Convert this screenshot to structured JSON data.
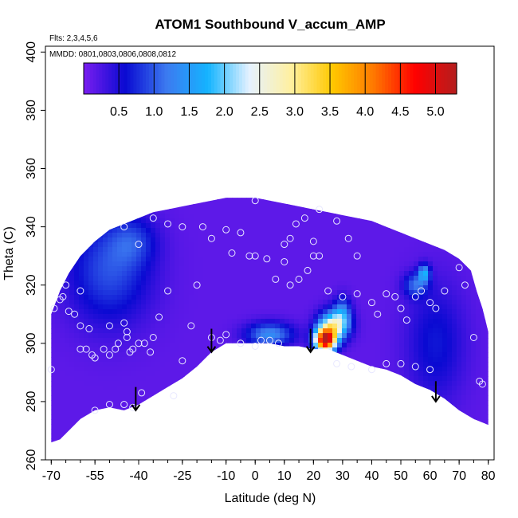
{
  "chart_data": {
    "type": "heatmap",
    "title": "ATOM1 Southbound V_accum_AMP",
    "subtitle_flights": "Flts: 2,3,4,5,6",
    "subtitle_dates": "MMDD: 0801,0803,0806,0808,0812",
    "xlabel": "Latitude (deg N)",
    "ylabel": "Theta (C)",
    "xlim": [
      -72,
      82
    ],
    "ylim": [
      260,
      402
    ],
    "x_ticks": [
      -70,
      -55,
      -40,
      -25,
      -10,
      0,
      10,
      20,
      30,
      40,
      50,
      60,
      70,
      80
    ],
    "y_ticks": [
      260,
      280,
      300,
      320,
      340,
      360,
      380,
      400
    ],
    "colorbar": {
      "range": [
        0,
        5.3
      ],
      "tick_values": [
        0.5,
        1.0,
        1.5,
        2.0,
        2.5,
        3.0,
        3.5,
        4.0,
        4.5,
        5.0
      ],
      "tick_labels": [
        "0.5",
        "1.0",
        "1.5",
        "2.0",
        "2.5",
        "3.0",
        "3.5",
        "4.0",
        "4.5",
        "5.0"
      ],
      "colors": [
        "#7a1ef0",
        "#0a0ad2",
        "#3c7af0",
        "#14b4ff",
        "#e6f2ff",
        "#fff0a0",
        "#ffc800",
        "#ff7800",
        "#ff0000",
        "#b41e1e"
      ]
    },
    "domain_top": [
      [
        -70,
        310
      ],
      [
        -67,
        318
      ],
      [
        -64,
        324
      ],
      [
        -60,
        330
      ],
      [
        -55,
        335
      ],
      [
        -50,
        339
      ],
      [
        -45,
        341
      ],
      [
        -40,
        343
      ],
      [
        -35,
        345
      ],
      [
        -30,
        346
      ],
      [
        -25,
        347
      ],
      [
        -20,
        348
      ],
      [
        -15,
        349
      ],
      [
        -10,
        350
      ],
      [
        -5,
        350
      ],
      [
        0,
        350
      ],
      [
        5,
        349
      ],
      [
        10,
        348
      ],
      [
        15,
        347
      ],
      [
        20,
        346
      ],
      [
        25,
        345
      ],
      [
        30,
        344
      ],
      [
        35,
        343
      ],
      [
        40,
        342
      ],
      [
        45,
        340
      ],
      [
        50,
        338
      ],
      [
        55,
        336
      ],
      [
        60,
        334
      ],
      [
        65,
        332
      ],
      [
        70,
        329
      ],
      [
        74,
        325
      ],
      [
        76,
        318
      ],
      [
        78,
        312
      ],
      [
        80,
        304
      ]
    ],
    "domain_bottom": [
      [
        80,
        272
      ],
      [
        75,
        274
      ],
      [
        70,
        277
      ],
      [
        65,
        281
      ],
      [
        60,
        284
      ],
      [
        55,
        286
      ],
      [
        50,
        289
      ],
      [
        45,
        291
      ],
      [
        40,
        292
      ],
      [
        35,
        294
      ],
      [
        30,
        296
      ],
      [
        25,
        298
      ],
      [
        20,
        298
      ],
      [
        15,
        299
      ],
      [
        10,
        299
      ],
      [
        5,
        300
      ],
      [
        0,
        300
      ],
      [
        -5,
        300
      ],
      [
        -10,
        300
      ],
      [
        -15,
        297
      ],
      [
        -20,
        292
      ],
      [
        -25,
        288
      ],
      [
        -30,
        285
      ],
      [
        -35,
        282
      ],
      [
        -40,
        279
      ],
      [
        -45,
        277
      ],
      [
        -50,
        278
      ],
      [
        -55,
        277
      ],
      [
        -60,
        274
      ],
      [
        -64,
        270
      ],
      [
        -67,
        267
      ],
      [
        -70,
        266
      ]
    ],
    "field_features": [
      {
        "x": 24,
        "y": 301,
        "amp": 4.9,
        "sx": 3.5,
        "sy": 4
      },
      {
        "x": 27,
        "y": 306,
        "amp": 2.4,
        "sx": 5,
        "sy": 5
      },
      {
        "x": 30,
        "y": 311,
        "amp": 0.9,
        "sx": 3,
        "sy": 5
      },
      {
        "x": 5,
        "y": 303,
        "amp": 1.2,
        "sx": 8,
        "sy": 4
      },
      {
        "x": -50,
        "y": 325,
        "amp": 0.8,
        "sx": 14,
        "sy": 18
      },
      {
        "x": -42,
        "y": 335,
        "amp": 0.5,
        "sx": 8,
        "sy": 8
      },
      {
        "x": 55,
        "y": 320,
        "amp": 0.9,
        "sx": 4,
        "sy": 4
      },
      {
        "x": 62,
        "y": 300,
        "amp": 0.5,
        "sx": 10,
        "sy": 20
      },
      {
        "x": 58,
        "y": 324,
        "amp": 1.4,
        "sx": 2,
        "sy": 3
      }
    ],
    "field_base": 0.15,
    "observation_points": [
      [
        -70,
        291
      ],
      [
        -69,
        312
      ],
      [
        -67,
        315
      ],
      [
        -66,
        316
      ],
      [
        -64,
        311
      ],
      [
        -62,
        310
      ],
      [
        -60,
        306
      ],
      [
        -58,
        298
      ],
      [
        -57,
        305
      ],
      [
        -55,
        295
      ],
      [
        -52,
        298
      ],
      [
        -50,
        296
      ],
      [
        -50,
        306
      ],
      [
        -48,
        298
      ],
      [
        -47,
        300
      ],
      [
        -45,
        307
      ],
      [
        -44,
        304
      ],
      [
        -44,
        302
      ],
      [
        -43,
        297
      ],
      [
        -42,
        298
      ],
      [
        -38,
        300
      ],
      [
        -36,
        297
      ],
      [
        -33,
        309
      ],
      [
        -30,
        318
      ],
      [
        -28,
        282
      ],
      [
        -25,
        294
      ],
      [
        -22,
        306
      ],
      [
        -20,
        320
      ],
      [
        -15,
        302
      ],
      [
        -12,
        301
      ],
      [
        -10,
        303
      ],
      [
        -5,
        300
      ],
      [
        0,
        299
      ],
      [
        2,
        301
      ],
      [
        5,
        301
      ],
      [
        8,
        300
      ],
      [
        -35,
        343
      ],
      [
        -30,
        341
      ],
      [
        -25,
        340
      ],
      [
        -18,
        340
      ],
      [
        -10,
        339
      ],
      [
        -5,
        338
      ],
      [
        0,
        349
      ],
      [
        -15,
        336
      ],
      [
        -8,
        331
      ],
      [
        -2,
        330
      ],
      [
        0,
        330
      ],
      [
        4,
        329
      ],
      [
        7,
        322
      ],
      [
        10,
        328
      ],
      [
        12,
        320
      ],
      [
        15,
        322
      ],
      [
        18,
        325
      ],
      [
        20,
        335
      ],
      [
        22,
        330
      ],
      [
        25,
        318
      ],
      [
        30,
        316
      ],
      [
        35,
        317
      ],
      [
        40,
        314
      ],
      [
        42,
        310
      ],
      [
        45,
        317
      ],
      [
        48,
        316
      ],
      [
        50,
        312
      ],
      [
        52,
        308
      ],
      [
        55,
        316
      ],
      [
        57,
        318
      ],
      [
        60,
        314
      ],
      [
        62,
        312
      ],
      [
        65,
        318
      ],
      [
        70,
        326
      ],
      [
        72,
        320
      ],
      [
        75,
        302
      ],
      [
        77,
        287
      ],
      [
        78,
        286
      ],
      [
        -56,
        296
      ],
      [
        -60,
        298
      ],
      [
        -40,
        300
      ],
      [
        -35,
        302
      ],
      [
        -55,
        277
      ],
      [
        -50,
        279
      ],
      [
        -45,
        279
      ],
      [
        -42,
        278
      ],
      [
        -39,
        283
      ],
      [
        28,
        293
      ],
      [
        33,
        292
      ],
      [
        40,
        291
      ],
      [
        45,
        293
      ],
      [
        50,
        293
      ],
      [
        55,
        292
      ],
      [
        60,
        291
      ],
      [
        10,
        334
      ],
      [
        14,
        341
      ],
      [
        17,
        343
      ],
      [
        22,
        346
      ],
      [
        28,
        342
      ],
      [
        32,
        336
      ],
      [
        -45,
        340
      ],
      [
        -40,
        334
      ],
      [
        -60,
        318
      ],
      [
        -65,
        320
      ],
      [
        12,
        336
      ],
      [
        20,
        330
      ],
      [
        35,
        330
      ]
    ],
    "arrows": [
      {
        "x": -41,
        "y_top": 285,
        "y_tip": 277
      },
      {
        "x": -15,
        "y_top": 305,
        "y_tip": 297
      },
      {
        "x": 19,
        "y_top": 305,
        "y_tip": 297
      },
      {
        "x": 62,
        "y_top": 287,
        "y_tip": 280
      }
    ]
  }
}
